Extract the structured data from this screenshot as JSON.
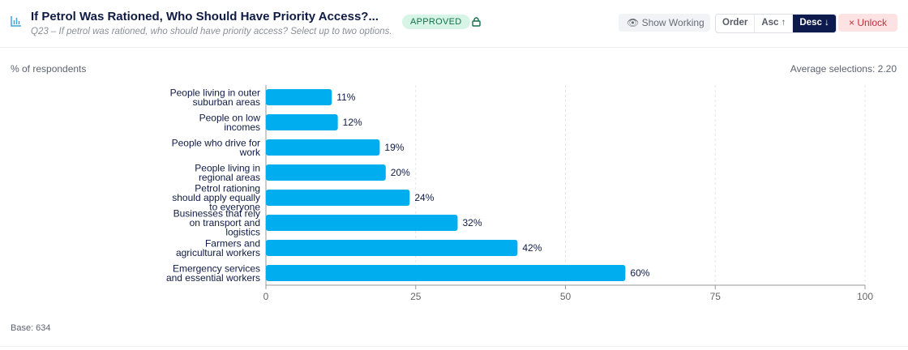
{
  "header": {
    "title": "If Petrol Was Rationed, Who Should Have Priority Access?...",
    "subtitle": "Q23 – If petrol was rationed, who should have priority access? Select up to two options.",
    "status": "APPROVED",
    "show_working": "Show Working",
    "order_label": "Order",
    "asc_label": "Asc ↑",
    "desc_label": "Desc ↓",
    "unlock_label": "× Unlock"
  },
  "colors": {
    "bar": "#00aeef",
    "accent": "#0d1a4d"
  },
  "chart_data": {
    "type": "bar",
    "orientation": "horizontal",
    "ylabel": "% of respondents",
    "categories": [
      "People living in outer suburban areas",
      "People on low incomes",
      "People who drive for work",
      "People living in regional areas",
      "Petrol rationing should apply equally to everyone",
      "Businesses that rely on transport and logistics",
      "Farmers and agricultural workers",
      "Emergency services and essential workers"
    ],
    "category_lines": [
      [
        "People living in outer",
        "suburban areas"
      ],
      [
        "People on low",
        "incomes"
      ],
      [
        "People who drive for",
        "work"
      ],
      [
        "People living in",
        "regional areas"
      ],
      [
        "Petrol rationing",
        "should apply equally",
        "to everyone"
      ],
      [
        "Businesses that rely",
        "on transport and",
        "logistics"
      ],
      [
        "Farmers and",
        "agricultural workers"
      ],
      [
        "Emergency services",
        "and essential workers"
      ]
    ],
    "values": [
      11,
      12,
      19,
      20,
      24,
      32,
      42,
      60
    ],
    "data_labels": [
      "11%",
      "12%",
      "19%",
      "20%",
      "24%",
      "32%",
      "42%",
      "60%"
    ],
    "xlim": [
      0,
      100
    ],
    "xticks": [
      0,
      25,
      50,
      75,
      100
    ],
    "grid": true
  },
  "average": "Average selections: 2.20",
  "base": "Base: 634"
}
